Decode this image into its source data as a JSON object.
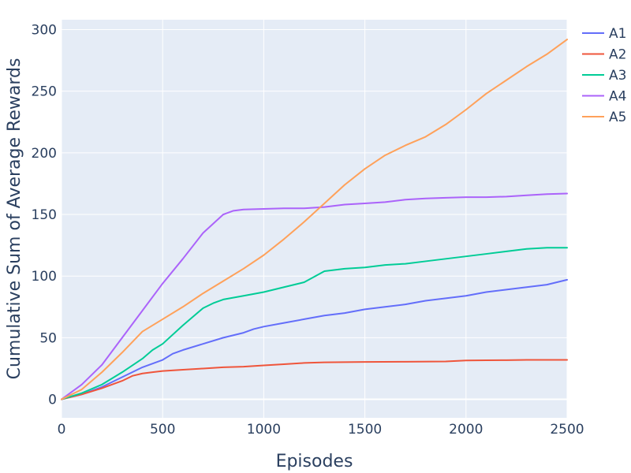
{
  "chart_data": {
    "type": "line",
    "title": "",
    "xlabel": "Episodes",
    "ylabel": "Cumulative Sum of Average Rewards",
    "xlim": [
      0,
      2500
    ],
    "ylim": [
      -15,
      308
    ],
    "x_ticks": [
      0,
      500,
      1000,
      1500,
      2000,
      2500
    ],
    "y_ticks": [
      0,
      50,
      100,
      150,
      200,
      250,
      300
    ],
    "grid": true,
    "legend_position": "top-right",
    "colors": {
      "plot_bg": "#e5ecf6",
      "grid": "#ffffff",
      "text": "#2a3f5f"
    },
    "series": [
      {
        "name": "A1",
        "color": "#636efa",
        "x": [
          0,
          100,
          200,
          300,
          400,
          500,
          550,
          600,
          700,
          800,
          900,
          950,
          1000,
          1100,
          1200,
          1300,
          1400,
          1500,
          1600,
          1700,
          1800,
          1900,
          2000,
          2100,
          2200,
          2300,
          2400,
          2500
        ],
        "y": [
          0,
          4,
          10,
          18,
          26,
          32,
          37,
          40,
          45,
          50,
          54,
          57,
          59,
          62,
          65,
          68,
          70,
          73,
          75,
          77,
          80,
          82,
          84,
          87,
          89,
          91,
          93,
          97
        ]
      },
      {
        "name": "A2",
        "color": "#ef553b",
        "x": [
          0,
          100,
          200,
          300,
          350,
          400,
          450,
          500,
          600,
          700,
          800,
          900,
          1000,
          1100,
          1200,
          1300,
          1500,
          1700,
          1900,
          2000,
          2100,
          2200,
          2300,
          2400,
          2500
        ],
        "y": [
          0,
          4,
          9,
          15,
          19,
          21,
          22,
          23,
          24,
          25,
          26,
          26.5,
          27.5,
          28.5,
          29.5,
          30,
          30.3,
          30.5,
          30.7,
          31.5,
          31.7,
          31.8,
          32,
          32,
          32
        ]
      },
      {
        "name": "A3",
        "color": "#00cc96",
        "x": [
          0,
          100,
          200,
          300,
          400,
          450,
          500,
          600,
          700,
          750,
          800,
          900,
          1000,
          1100,
          1200,
          1300,
          1400,
          1500,
          1600,
          1700,
          1800,
          1900,
          2000,
          2100,
          2200,
          2300,
          2400,
          2500
        ],
        "y": [
          0,
          5,
          12,
          22,
          33,
          40,
          45,
          60,
          74,
          78,
          81,
          84,
          87,
          91,
          95,
          104,
          106,
          107,
          109,
          110,
          112,
          114,
          116,
          118,
          120,
          122,
          123,
          123
        ]
      },
      {
        "name": "A4",
        "color": "#ab63fa",
        "x": [
          0,
          100,
          200,
          300,
          400,
          500,
          600,
          700,
          800,
          850,
          900,
          1000,
          1100,
          1200,
          1300,
          1400,
          1500,
          1600,
          1700,
          1800,
          1900,
          2000,
          2100,
          2200,
          2300,
          2400,
          2500
        ],
        "y": [
          0,
          12,
          28,
          50,
          72,
          94,
          114,
          135,
          150,
          153,
          154,
          154.5,
          155,
          155,
          156,
          158,
          159,
          160,
          162,
          163,
          163.5,
          164,
          164,
          164.5,
          165.5,
          166.5,
          167
        ]
      },
      {
        "name": "A5",
        "color": "#ffa15a",
        "x": [
          0,
          100,
          200,
          300,
          400,
          500,
          600,
          700,
          800,
          900,
          1000,
          1100,
          1200,
          1300,
          1400,
          1500,
          1600,
          1700,
          1800,
          1900,
          2000,
          2100,
          2200,
          2300,
          2400,
          2500
        ],
        "y": [
          0,
          8,
          22,
          38,
          55,
          65,
          75,
          86,
          96,
          106,
          117,
          130,
          144,
          159,
          174,
          187,
          198,
          206,
          213,
          223,
          235,
          248,
          259,
          270,
          280,
          292
        ]
      }
    ]
  }
}
